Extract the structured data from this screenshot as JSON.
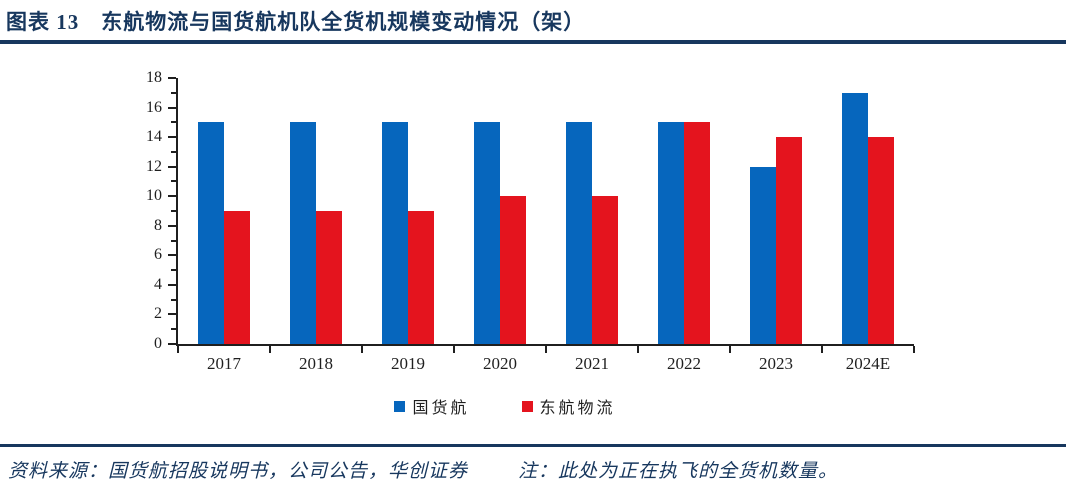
{
  "header": {
    "figure_label": "图表 13",
    "title": "东航物流与国货航机队全货机规模变动情况（架）"
  },
  "chart_data": {
    "type": "bar",
    "title": "",
    "xlabel": "",
    "ylabel": "",
    "categories": [
      "2017",
      "2018",
      "2019",
      "2020",
      "2021",
      "2022",
      "2023",
      "2024E"
    ],
    "series": [
      {
        "name": "国货航",
        "color": "#0666BD",
        "values": [
          15,
          15,
          15,
          15,
          15,
          15,
          12,
          17
        ]
      },
      {
        "name": "东航物流",
        "color": "#E4141E",
        "values": [
          9,
          9,
          9,
          10,
          10,
          15,
          14,
          14
        ]
      }
    ],
    "ylim": [
      0,
      18
    ],
    "ytick_step": 2,
    "minor_ticks": true,
    "grid": false,
    "legend_position": "bottom"
  },
  "footer": {
    "source": "资料来源：国货航招股说明书，公司公告，华创证券",
    "note": "注：此处为正在执飞的全货机数量。"
  },
  "colors": {
    "accent_navy": "#17375E",
    "axis": "#1F1F1F",
    "series_blue": "#0666BD",
    "series_red": "#E4141E"
  }
}
